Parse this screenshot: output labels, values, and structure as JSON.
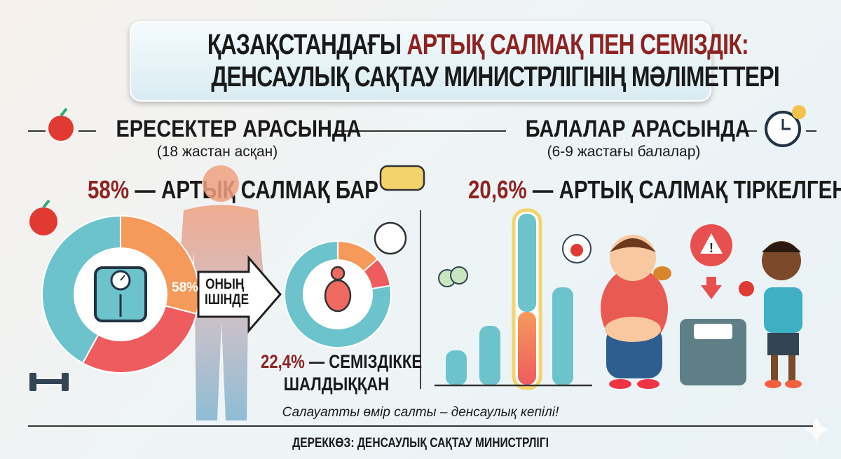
{
  "title": {
    "line1_black": "ҚАЗАҚСТАНДАҒЫ",
    "line1_red": "АРТЫҚ САЛМАҚ ПЕН СЕМІЗДІК:",
    "line2": "ДЕНСАУЛЫҚ САҚТАУ МИНИСТРЛІГІНІҢ МӘЛІМЕТТЕРІ"
  },
  "adults": {
    "heading": "ЕРЕСЕКТЕР АРАСЫНДА",
    "subheading": "(18 жастан асқан)",
    "stat_value": "58%",
    "stat_label": "— АРТЫҚ САЛМАҚ БАР",
    "donut_label": "58%",
    "overweight_percent": 58,
    "arrow_line1": "ОНЫҢ",
    "arrow_line2": "ІШІНДЕ",
    "obese_value": "22,4%",
    "obese_label_1": "— СЕМІЗДІККЕ",
    "obese_label_2": "ШАЛДЫҚҚАН",
    "obese_percent": 22.4
  },
  "children": {
    "heading": "БАЛАЛАР АРАСЫНДА",
    "subheading": "(6-9 жастағы балалар)",
    "stat_value": "20,6%",
    "stat_label": "— АРТЫҚ САЛМАҚ ТІРКЕЛГЕН",
    "overweight_percent": 20.6
  },
  "slogan": "Салауатты өмір салты – денсаулық кепілі!",
  "source": "ДЕРЕККӨЗ: ДЕНСАУЛЫҚ САҚТАУ МИНИСТРЛІГІ",
  "colors": {
    "teal": "#6cc3cb",
    "orange": "#f59a5a",
    "red": "#ee5c60",
    "dark_red": "#8e2322",
    "yellow": "#f3d36b"
  },
  "icons": [
    "apple-icon",
    "scale-icon",
    "dumbbell-icon",
    "measuring-tape-icon",
    "clock-icon",
    "broccoli-icon",
    "burger-icon",
    "warning-icon"
  ]
}
